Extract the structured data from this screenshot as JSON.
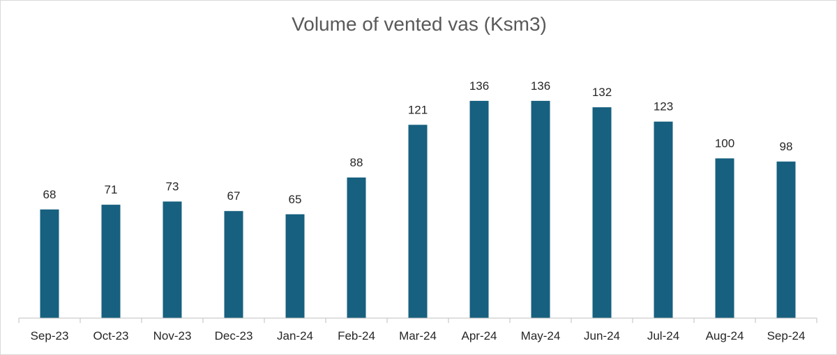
{
  "chart_data": {
    "type": "bar",
    "title": "Volume of vented vas (Ksm3)",
    "xlabel": "",
    "ylabel": "",
    "categories": [
      "Sep-23",
      "Oct-23",
      "Nov-23",
      "Dec-23",
      "Jan-24",
      "Feb-24",
      "Mar-24",
      "Apr-24",
      "May-24",
      "Jun-24",
      "Jul-24",
      "Aug-24",
      "Sep-24"
    ],
    "values": [
      68,
      71,
      73,
      67,
      65,
      88,
      121,
      136,
      136,
      132,
      123,
      100,
      98
    ],
    "ylim": [
      0,
      160
    ],
    "grid": false,
    "legend": "none",
    "bar_color": "#17607f",
    "axis_color": "#bfbfbf"
  }
}
